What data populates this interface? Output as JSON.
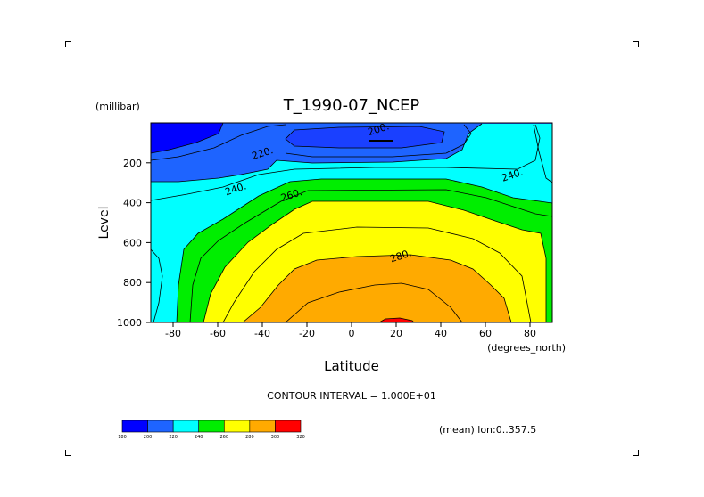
{
  "chart_data": {
    "type": "heatmap",
    "title": "T_1990-07_NCEP",
    "xlabel": "Latitude",
    "ylabel": "Level",
    "x_units": "(degrees_north)",
    "y_units": "(millibar)",
    "xlim": [
      -90,
      90
    ],
    "ylim": [
      1000,
      0
    ],
    "x_ticks": [
      -80,
      -60,
      -40,
      -20,
      0,
      20,
      40,
      60,
      80
    ],
    "y_ticks": [
      200,
      400,
      600,
      800,
      1000
    ],
    "contour_interval_text": "CONTOUR INTERVAL = 1.000E+01",
    "note": "(mean) lon:0..357.5",
    "contour_labels": [
      {
        "x": 12,
        "y": 30,
        "text": "200."
      },
      {
        "x": -40,
        "y": 150,
        "text": "220."
      },
      {
        "x": 72,
        "y": 260,
        "text": "240."
      },
      {
        "x": -52,
        "y": 330,
        "text": "240."
      },
      {
        "x": -27,
        "y": 360,
        "text": "260."
      },
      {
        "x": 22,
        "y": 665,
        "text": "280."
      }
    ],
    "colorbar": {
      "levels": [
        "180",
        "200",
        "220",
        "240",
        "260",
        "280",
        "300",
        "320"
      ],
      "colors": [
        "#0000ff",
        "#1e64ff",
        "#00ffff",
        "#00ee00",
        "#ffff00",
        "#ffaa00",
        "#ff0000"
      ]
    }
  }
}
